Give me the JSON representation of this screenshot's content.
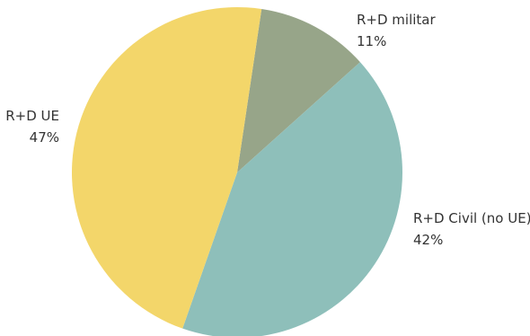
{
  "chart_data": {
    "type": "pie",
    "title": "",
    "start_angle_deg": 8.5,
    "direction": "clockwise",
    "slices": [
      {
        "name": "R+D militar",
        "value": 11,
        "value_label": "11%",
        "color": "#97a589"
      },
      {
        "name": "R+D Civil (no UE)",
        "value": 42,
        "value_label": "42%",
        "color": "#8ebfba"
      },
      {
        "name": "R+D UE",
        "value": 47,
        "value_label": "47%",
        "color": "#f3d66a"
      }
    ],
    "legend": "none",
    "labels": "outside"
  }
}
